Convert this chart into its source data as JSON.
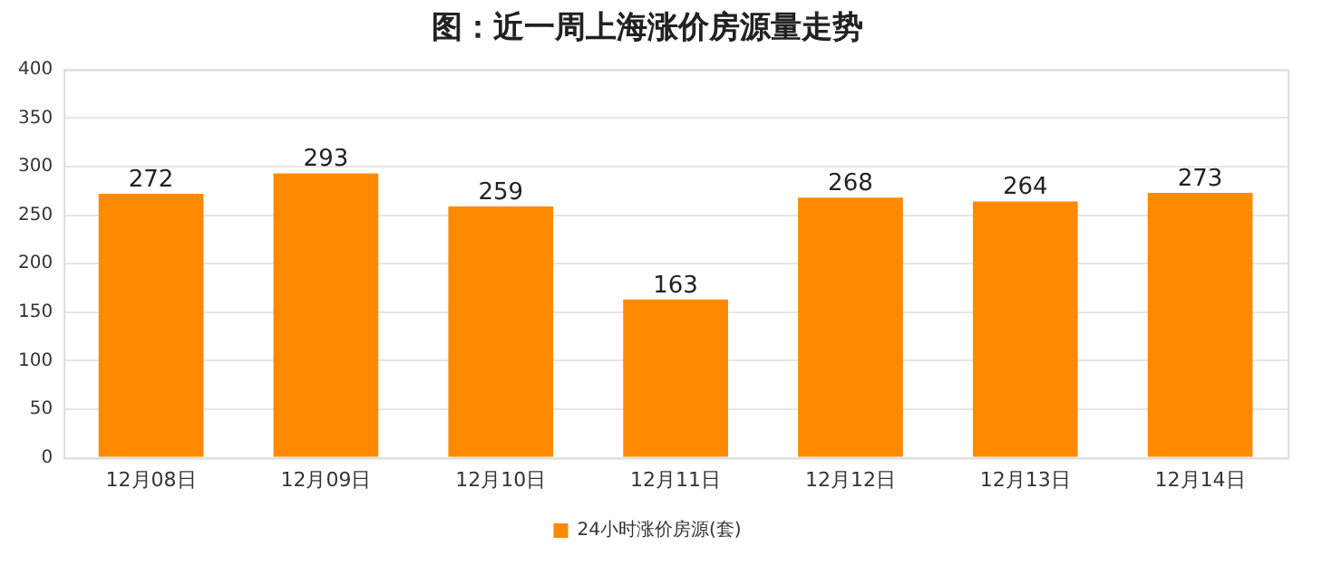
{
  "chart_data": {
    "type": "bar",
    "title": "图：近一周上海涨价房源量走势",
    "categories": [
      "12月08日",
      "12月09日",
      "12月10日",
      "12月11日",
      "12月12日",
      "12月13日",
      "12月14日"
    ],
    "series": [
      {
        "name": "24小时涨价房源(套)",
        "color": "#ff8a00",
        "values": [
          272,
          293,
          259,
          163,
          268,
          264,
          273
        ]
      }
    ],
    "ylim": [
      0,
      400
    ],
    "yticks": [
      0,
      50,
      100,
      150,
      200,
      250,
      300,
      350,
      400
    ],
    "grid": "y",
    "legend": "bottom",
    "data_labels": true
  }
}
